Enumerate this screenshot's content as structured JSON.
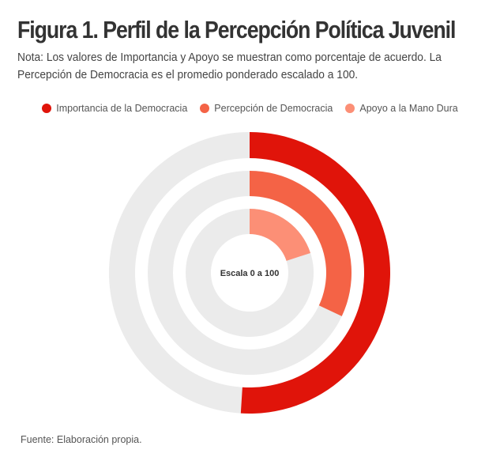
{
  "title": "Figura 1. Perfil de la Percepción Política Juvenil",
  "note": "Nota: Los valores de Importancia y Apoyo se muestran como porcentaje de acuerdo. La Percepción de Democracia es el promedio ponderado escalado a 100.",
  "source": "Fuente: Elaboración propia.",
  "chart_data": {
    "type": "radial-bar",
    "title": "Figura 1. Perfil de la Percepción Política Juvenil",
    "center_label": "Escala 0 a 100",
    "scale_max": 100,
    "legend_position": "top",
    "series": [
      {
        "name": "Importancia de la Democracia",
        "value": 51,
        "color": "#e0140a"
      },
      {
        "name": "Percepción de Democracia",
        "value": 32,
        "color": "#f46346"
      },
      {
        "name": "Apoyo a la Mano Dura",
        "value": 20,
        "color": "#fc8f76"
      }
    ],
    "track_color": "#ebebeb"
  }
}
